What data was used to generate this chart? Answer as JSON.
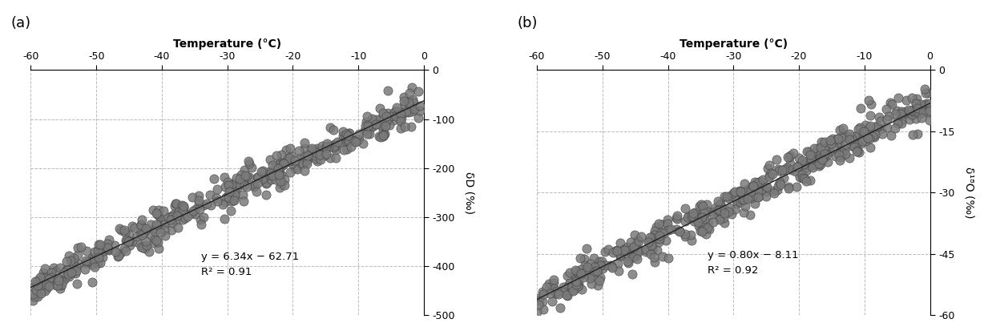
{
  "panel_a": {
    "label": "(a)",
    "xlabel": "Temperature (°C)",
    "ylabel": "δD (‰)",
    "xlim": [
      -60,
      0
    ],
    "ylim": [
      -500,
      0
    ],
    "xticks": [
      -60,
      -50,
      -40,
      -30,
      -20,
      -10,
      0
    ],
    "yticks": [
      0,
      -100,
      -200,
      -300,
      -400,
      -500
    ],
    "slope": 6.34,
    "intercept": -62.71,
    "r2": 0.91,
    "eq_text": "y = 6.34x − 62.71",
    "r2_text": "R² = 0.91",
    "eq_x": -34,
    "eq_y": -370,
    "spread": 18
  },
  "panel_b": {
    "label": "(b)",
    "xlabel": "Temperature (°C)",
    "ylabel": "δ¹⁸O (‰)",
    "xlim": [
      -60,
      0
    ],
    "ylim": [
      -60,
      0
    ],
    "xticks": [
      -60,
      -50,
      -40,
      -30,
      -20,
      -10,
      0
    ],
    "yticks": [
      0,
      -15,
      -30,
      -45,
      -60
    ],
    "slope": 0.8,
    "intercept": -8.11,
    "r2": 0.92,
    "eq_text": "y = 0.80x − 8.11",
    "r2_text": "R² = 0.92",
    "eq_x": -34,
    "eq_y": -44,
    "spread": 2.2
  },
  "dot_color": "#7a7a7a",
  "dot_edgecolor": "#444444",
  "dot_size": 65,
  "dot_alpha": 0.85,
  "dot_linewidth": 0.5,
  "line_color": "#222222",
  "line_width": 1.0,
  "grid_color": "#bbbbbb",
  "grid_linestyle": "--",
  "bg_color": "#ffffff",
  "n_points_a": 420,
  "n_points_b": 480,
  "seed_a": 42,
  "seed_b": 99,
  "figsize": [
    12.33,
    4.18
  ],
  "dpi": 100
}
